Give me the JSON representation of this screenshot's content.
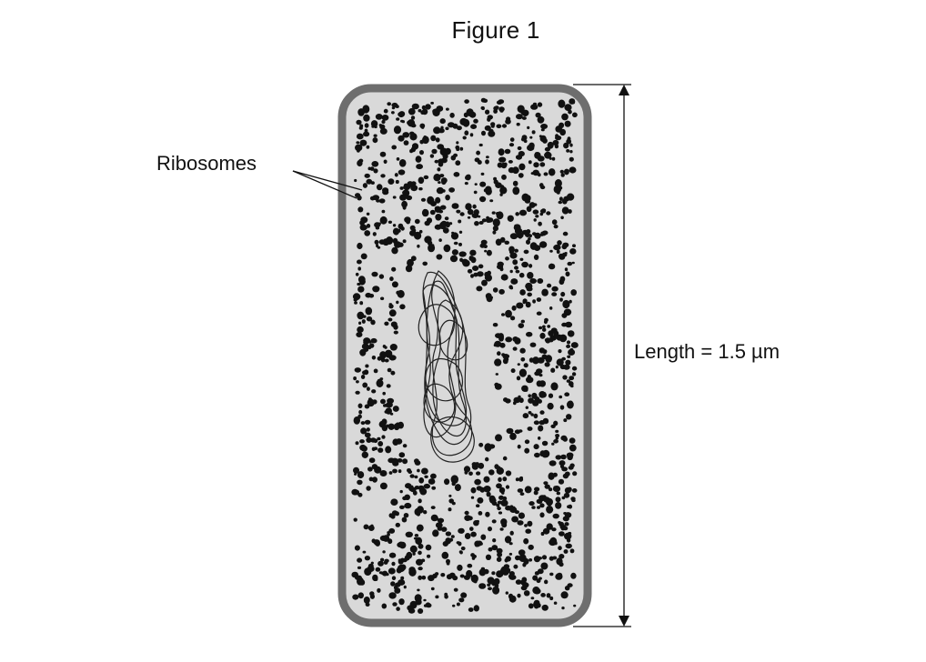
{
  "figure": {
    "title": "Figure 1"
  },
  "labels": {
    "ribosomes": "Ribosomes",
    "length": "Length = 1.5 µm"
  },
  "colors": {
    "cell_wall": "#6e6e6e",
    "cytoplasm": "#d9d9d9",
    "ribosome": "#111111",
    "dna_line": "#222222",
    "arrow": "#111111"
  }
}
